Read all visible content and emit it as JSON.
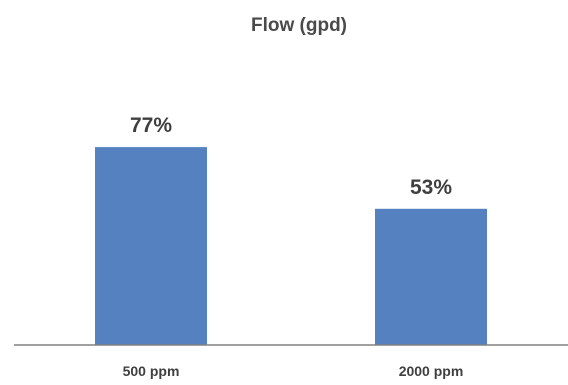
{
  "chart_data": {
    "type": "bar",
    "title": "Flow (gpd)",
    "categories": [
      "500 ppm",
      "2000 ppm"
    ],
    "values": [
      77,
      53
    ],
    "data_labels": [
      "77%",
      "53%"
    ],
    "ylim": [
      0,
      100
    ],
    "grid": false,
    "legend": "none",
    "colors": {
      "bar": "#5681c0",
      "axis": "#808080",
      "title": "#4a4a4a",
      "labels": "#3f3f3f"
    }
  }
}
